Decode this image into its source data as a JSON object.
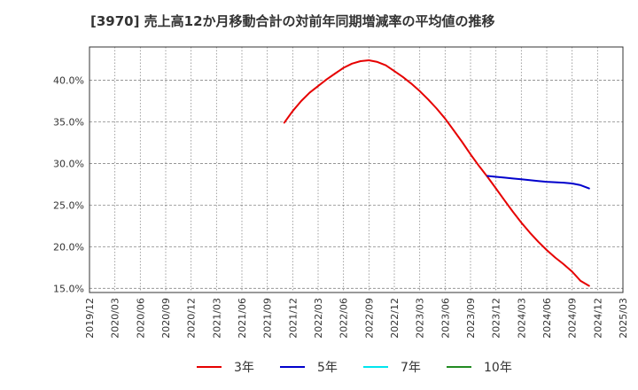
{
  "chart_data": {
    "type": "line",
    "title": "[3970]  売上高12か月移動合計の対前年同期増減率の平均値の推移",
    "xlabel": "",
    "ylabel": "",
    "ylim": [
      14.5,
      44.0
    ],
    "y_ticks": [
      15.0,
      20.0,
      25.0,
      30.0,
      35.0,
      40.0
    ],
    "y_tick_labels": [
      "15.0%",
      "20.0%",
      "25.0%",
      "30.0%",
      "35.0%",
      "40.0%"
    ],
    "x_tick_labels": [
      "2019/12",
      "2020/03",
      "2020/06",
      "2020/09",
      "2020/12",
      "2021/03",
      "2021/06",
      "2021/09",
      "2021/12",
      "2022/03",
      "2022/06",
      "2022/09",
      "2022/12",
      "2023/03",
      "2023/06",
      "2023/09",
      "2023/12",
      "2024/03",
      "2024/06",
      "2024/09",
      "2024/12",
      "2025/03"
    ],
    "grid": true,
    "legend_position": "bottom",
    "series": [
      {
        "name": "3年",
        "color": "#e60000",
        "points": [
          {
            "x": "2021/11",
            "y": 34.9
          },
          {
            "x": "2021/12",
            "y": 36.3
          },
          {
            "x": "2022/01",
            "y": 37.5
          },
          {
            "x": "2022/02",
            "y": 38.5
          },
          {
            "x": "2022/03",
            "y": 39.3
          },
          {
            "x": "2022/04",
            "y": 40.1
          },
          {
            "x": "2022/05",
            "y": 40.8
          },
          {
            "x": "2022/06",
            "y": 41.5
          },
          {
            "x": "2022/07",
            "y": 42.0
          },
          {
            "x": "2022/08",
            "y": 42.3
          },
          {
            "x": "2022/09",
            "y": 42.4
          },
          {
            "x": "2022/10",
            "y": 42.2
          },
          {
            "x": "2022/11",
            "y": 41.8
          },
          {
            "x": "2022/12",
            "y": 41.1
          },
          {
            "x": "2023/01",
            "y": 40.4
          },
          {
            "x": "2023/02",
            "y": 39.6
          },
          {
            "x": "2023/03",
            "y": 38.7
          },
          {
            "x": "2023/04",
            "y": 37.7
          },
          {
            "x": "2023/05",
            "y": 36.6
          },
          {
            "x": "2023/06",
            "y": 35.4
          },
          {
            "x": "2023/07",
            "y": 34.0
          },
          {
            "x": "2023/08",
            "y": 32.6
          },
          {
            "x": "2023/09",
            "y": 31.1
          },
          {
            "x": "2023/10",
            "y": 29.7
          },
          {
            "x": "2023/11",
            "y": 28.4
          },
          {
            "x": "2023/12",
            "y": 27.0
          },
          {
            "x": "2024/01",
            "y": 25.6
          },
          {
            "x": "2024/02",
            "y": 24.2
          },
          {
            "x": "2024/03",
            "y": 22.9
          },
          {
            "x": "2024/04",
            "y": 21.7
          },
          {
            "x": "2024/05",
            "y": 20.6
          },
          {
            "x": "2024/06",
            "y": 19.6
          },
          {
            "x": "2024/07",
            "y": 18.7
          },
          {
            "x": "2024/08",
            "y": 17.9
          },
          {
            "x": "2024/09",
            "y": 17.0
          },
          {
            "x": "2024/10",
            "y": 15.9
          },
          {
            "x": "2024/11",
            "y": 15.3
          }
        ]
      },
      {
        "name": "5年",
        "color": "#0000cc",
        "points": [
          {
            "x": "2023/11",
            "y": 28.5
          },
          {
            "x": "2023/12",
            "y": 28.4
          },
          {
            "x": "2024/01",
            "y": 28.3
          },
          {
            "x": "2024/02",
            "y": 28.2
          },
          {
            "x": "2024/03",
            "y": 28.1
          },
          {
            "x": "2024/04",
            "y": 28.0
          },
          {
            "x": "2024/05",
            "y": 27.9
          },
          {
            "x": "2024/06",
            "y": 27.8
          },
          {
            "x": "2024/07",
            "y": 27.75
          },
          {
            "x": "2024/08",
            "y": 27.7
          },
          {
            "x": "2024/09",
            "y": 27.6
          },
          {
            "x": "2024/10",
            "y": 27.4
          },
          {
            "x": "2024/11",
            "y": 27.0
          }
        ]
      },
      {
        "name": "7年",
        "color": "#00e5ee",
        "points": []
      },
      {
        "name": "10年",
        "color": "#228b22",
        "points": []
      }
    ]
  }
}
